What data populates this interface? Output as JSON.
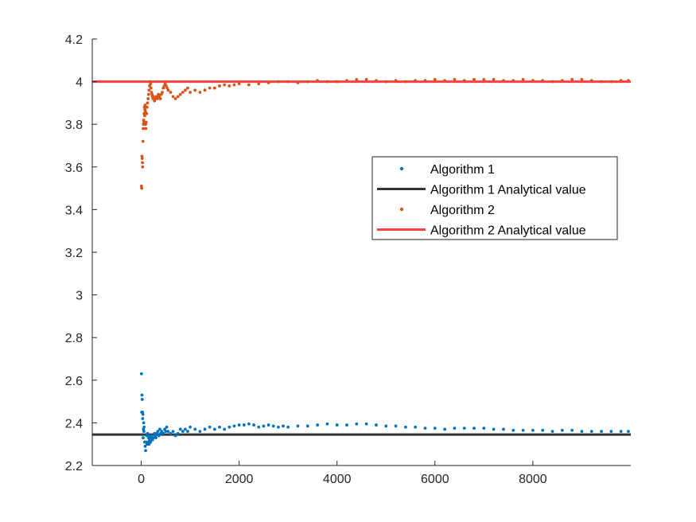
{
  "chart_data": {
    "type": "scatter",
    "title": "",
    "xlabel": "",
    "ylabel": "",
    "xlim": [
      -1000,
      10000
    ],
    "ylim": [
      2.2,
      4.2
    ],
    "xticks": [
      0,
      2000,
      4000,
      6000,
      8000
    ],
    "yticks": [
      2.2,
      2.4,
      2.6,
      2.8,
      3,
      3.2,
      3.4,
      3.6,
      3.8,
      4,
      4.2
    ],
    "xtick_labels": [
      "0",
      "2000",
      "4000",
      "6000",
      "8000"
    ],
    "ytick_labels": [
      "2.2",
      "2.4",
      "2.6",
      "2.8",
      "3",
      "3.2",
      "3.4",
      "3.6",
      "3.8",
      "4",
      "4.2"
    ],
    "grid": false,
    "legend_position": "upper-right",
    "series": [
      {
        "name": "Algorithm 1",
        "kind": "scatter",
        "color": "#0072BD",
        "points": [
          [
            5,
            2.63
          ],
          [
            10,
            2.45
          ],
          [
            15,
            2.53
          ],
          [
            20,
            2.51
          ],
          [
            25,
            2.45
          ],
          [
            30,
            2.42
          ],
          [
            35,
            2.44
          ],
          [
            40,
            2.33
          ],
          [
            45,
            2.37
          ],
          [
            50,
            2.4
          ],
          [
            55,
            2.36
          ],
          [
            60,
            2.38
          ],
          [
            70,
            2.31
          ],
          [
            80,
            2.29
          ],
          [
            90,
            2.27
          ],
          [
            100,
            2.31
          ],
          [
            110,
            2.34
          ],
          [
            120,
            2.3
          ],
          [
            130,
            2.35
          ],
          [
            140,
            2.31
          ],
          [
            150,
            2.33
          ],
          [
            160,
            2.3
          ],
          [
            170,
            2.32
          ],
          [
            180,
            2.34
          ],
          [
            190,
            2.31
          ],
          [
            200,
            2.33
          ],
          [
            210,
            2.34
          ],
          [
            230,
            2.32
          ],
          [
            250,
            2.33
          ],
          [
            270,
            2.35
          ],
          [
            290,
            2.34
          ],
          [
            300,
            2.33
          ],
          [
            320,
            2.35
          ],
          [
            340,
            2.36
          ],
          [
            360,
            2.34
          ],
          [
            380,
            2.37
          ],
          [
            400,
            2.35
          ],
          [
            420,
            2.36
          ],
          [
            450,
            2.35
          ],
          [
            480,
            2.37
          ],
          [
            500,
            2.36
          ],
          [
            520,
            2.38
          ],
          [
            550,
            2.36
          ],
          [
            600,
            2.35
          ],
          [
            650,
            2.36
          ],
          [
            700,
            2.34
          ],
          [
            750,
            2.35
          ],
          [
            800,
            2.37
          ],
          [
            850,
            2.36
          ],
          [
            900,
            2.37
          ],
          [
            950,
            2.36
          ],
          [
            1000,
            2.38
          ],
          [
            1100,
            2.37
          ],
          [
            1200,
            2.36
          ],
          [
            1300,
            2.37
          ],
          [
            1400,
            2.38
          ],
          [
            1500,
            2.37
          ],
          [
            1600,
            2.38
          ],
          [
            1700,
            2.37
          ],
          [
            1800,
            2.38
          ],
          [
            1900,
            2.385
          ],
          [
            2000,
            2.39
          ],
          [
            2100,
            2.39
          ],
          [
            2200,
            2.395
          ],
          [
            2300,
            2.39
          ],
          [
            2400,
            2.38
          ],
          [
            2500,
            2.385
          ],
          [
            2600,
            2.39
          ],
          [
            2700,
            2.385
          ],
          [
            2800,
            2.38
          ],
          [
            2900,
            2.385
          ],
          [
            3000,
            2.38
          ],
          [
            3200,
            2.385
          ],
          [
            3400,
            2.385
          ],
          [
            3600,
            2.39
          ],
          [
            3800,
            2.395
          ],
          [
            4000,
            2.39
          ],
          [
            4200,
            2.39
          ],
          [
            4400,
            2.395
          ],
          [
            4600,
            2.395
          ],
          [
            4800,
            2.39
          ],
          [
            5000,
            2.385
          ],
          [
            5200,
            2.385
          ],
          [
            5400,
            2.38
          ],
          [
            5600,
            2.38
          ],
          [
            5800,
            2.375
          ],
          [
            6000,
            2.375
          ],
          [
            6200,
            2.37
          ],
          [
            6400,
            2.375
          ],
          [
            6600,
            2.375
          ],
          [
            6800,
            2.375
          ],
          [
            7000,
            2.375
          ],
          [
            7200,
            2.37
          ],
          [
            7400,
            2.37
          ],
          [
            7600,
            2.365
          ],
          [
            7800,
            2.365
          ],
          [
            8000,
            2.365
          ],
          [
            8200,
            2.365
          ],
          [
            8400,
            2.36
          ],
          [
            8600,
            2.365
          ],
          [
            8800,
            2.365
          ],
          [
            9000,
            2.36
          ],
          [
            9200,
            2.36
          ],
          [
            9400,
            2.36
          ],
          [
            9600,
            2.36
          ],
          [
            9800,
            2.36
          ],
          [
            9950,
            2.36
          ]
        ]
      },
      {
        "name": "Algorithm 1 Analytical value",
        "kind": "line",
        "color": "#333333",
        "y": 2.345
      },
      {
        "name": "Algorithm 2",
        "kind": "scatter",
        "color": "#D95319",
        "points": [
          [
            5,
            3.51
          ],
          [
            10,
            3.5
          ],
          [
            15,
            3.65
          ],
          [
            20,
            3.64
          ],
          [
            25,
            3.62
          ],
          [
            30,
            3.6
          ],
          [
            35,
            3.72
          ],
          [
            40,
            3.78
          ],
          [
            45,
            3.8
          ],
          [
            50,
            3.82
          ],
          [
            55,
            3.81
          ],
          [
            60,
            3.85
          ],
          [
            65,
            3.88
          ],
          [
            70,
            3.84
          ],
          [
            75,
            3.87
          ],
          [
            80,
            3.89
          ],
          [
            85,
            3.86
          ],
          [
            90,
            3.8
          ],
          [
            95,
            3.78
          ],
          [
            100,
            3.81
          ],
          [
            110,
            3.85
          ],
          [
            120,
            3.88
          ],
          [
            130,
            3.9
          ],
          [
            140,
            3.92
          ],
          [
            150,
            3.94
          ],
          [
            160,
            3.96
          ],
          [
            170,
            3.98
          ],
          [
            180,
            4.0
          ],
          [
            190,
            3.99
          ],
          [
            200,
            3.97
          ],
          [
            210,
            3.95
          ],
          [
            220,
            3.94
          ],
          [
            230,
            3.93
          ],
          [
            240,
            3.92
          ],
          [
            250,
            3.93
          ],
          [
            270,
            3.91
          ],
          [
            290,
            3.92
          ],
          [
            310,
            3.93
          ],
          [
            330,
            3.92
          ],
          [
            350,
            3.94
          ],
          [
            370,
            3.93
          ],
          [
            390,
            3.92
          ],
          [
            410,
            3.94
          ],
          [
            430,
            3.95
          ],
          [
            450,
            3.97
          ],
          [
            470,
            3.98
          ],
          [
            490,
            3.99
          ],
          [
            510,
            3.98
          ],
          [
            530,
            3.97
          ],
          [
            550,
            3.96
          ],
          [
            600,
            3.95
          ],
          [
            650,
            3.93
          ],
          [
            700,
            3.92
          ],
          [
            750,
            3.93
          ],
          [
            800,
            3.94
          ],
          [
            850,
            3.95
          ],
          [
            900,
            3.96
          ],
          [
            950,
            3.97
          ],
          [
            1000,
            3.95
          ],
          [
            1100,
            3.96
          ],
          [
            1200,
            3.95
          ],
          [
            1300,
            3.96
          ],
          [
            1400,
            3.97
          ],
          [
            1500,
            3.97
          ],
          [
            1600,
            3.98
          ],
          [
            1700,
            3.985
          ],
          [
            1800,
            3.98
          ],
          [
            1900,
            3.985
          ],
          [
            2000,
            3.99
          ],
          [
            2200,
            3.985
          ],
          [
            2400,
            3.99
          ],
          [
            2600,
            3.995
          ],
          [
            2800,
            4.0
          ],
          [
            3000,
            4.0
          ],
          [
            3200,
            3.995
          ],
          [
            3400,
            4.0
          ],
          [
            3600,
            4.005
          ],
          [
            3800,
            4.0
          ],
          [
            4000,
            4.0
          ],
          [
            4200,
            4.005
          ],
          [
            4400,
            4.01
          ],
          [
            4600,
            4.01
          ],
          [
            4800,
            4.005
          ],
          [
            5000,
            4.0
          ],
          [
            5200,
            4.005
          ],
          [
            5400,
            4.0
          ],
          [
            5600,
            4.005
          ],
          [
            5800,
            4.005
          ],
          [
            6000,
            4.01
          ],
          [
            6200,
            4.005
          ],
          [
            6400,
            4.01
          ],
          [
            6600,
            4.005
          ],
          [
            6800,
            4.01
          ],
          [
            7000,
            4.01
          ],
          [
            7200,
            4.01
          ],
          [
            7400,
            4.005
          ],
          [
            7600,
            4.005
          ],
          [
            7800,
            4.01
          ],
          [
            8000,
            4.005
          ],
          [
            8200,
            4.005
          ],
          [
            8400,
            4.0
          ],
          [
            8600,
            4.005
          ],
          [
            8800,
            4.01
          ],
          [
            9000,
            4.01
          ],
          [
            9200,
            4.005
          ],
          [
            9400,
            4.0
          ],
          [
            9600,
            4.0
          ],
          [
            9800,
            4.005
          ],
          [
            9950,
            4.005
          ]
        ]
      },
      {
        "name": "Algorithm 2 Analytical value",
        "kind": "line",
        "color": "#FF4040",
        "y": 4.0
      }
    ]
  }
}
